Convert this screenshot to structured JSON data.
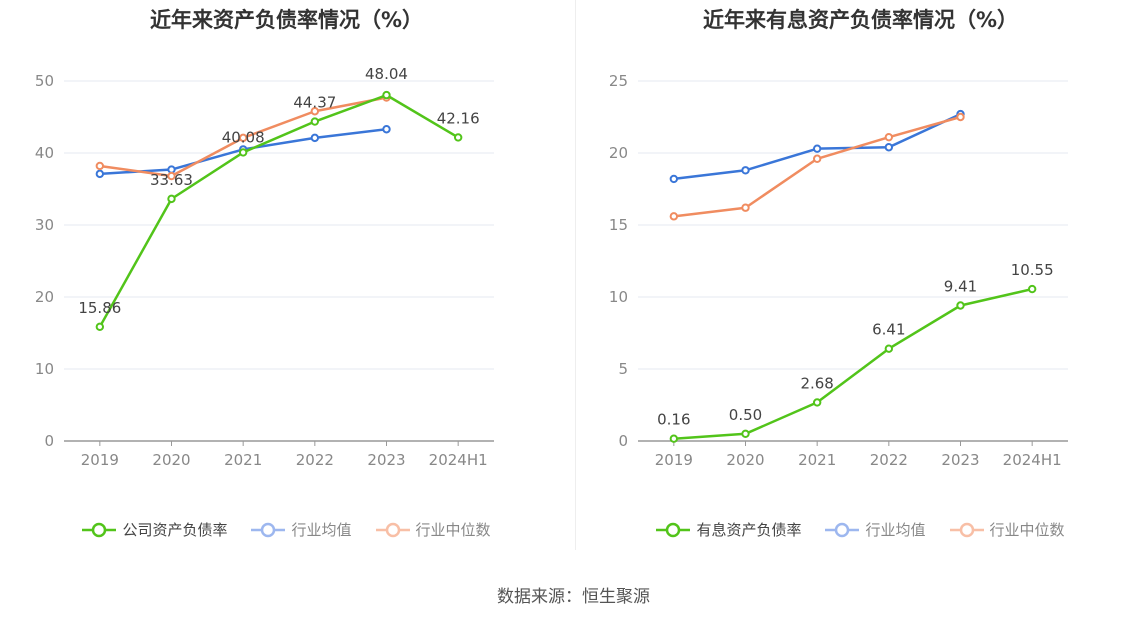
{
  "source_note": "数据来源：恒生聚源",
  "chart_data": [
    {
      "type": "line",
      "title": "近年来资产负债率情况（%）",
      "categories": [
        "2019",
        "2020",
        "2021",
        "2022",
        "2023",
        "2024H1"
      ],
      "ylim": [
        0,
        50
      ],
      "yticks": [
        0,
        10,
        20,
        30,
        40,
        50
      ],
      "grid": true,
      "legend_position": "bottom",
      "series": [
        {
          "name": "公司资产负债率",
          "color": "#52c41a",
          "values": [
            15.86,
            33.63,
            40.08,
            44.37,
            48.04,
            42.16
          ],
          "labels": [
            "15.86",
            "33.63",
            "40.08",
            "44.37",
            "48.04",
            "42.16"
          ]
        },
        {
          "name": "行业均值",
          "color": "#3a76d8",
          "values": [
            37.1,
            37.7,
            40.5,
            42.1,
            43.3,
            null
          ]
        },
        {
          "name": "行业中位数",
          "color": "#f08c60",
          "values": [
            38.2,
            36.8,
            42.1,
            45.8,
            47.7,
            null
          ]
        }
      ]
    },
    {
      "type": "line",
      "title": "近年来有息资产负债率情况（%）",
      "categories": [
        "2019",
        "2020",
        "2021",
        "2022",
        "2023",
        "2024H1"
      ],
      "ylim": [
        0,
        25
      ],
      "yticks": [
        0,
        5,
        10,
        15,
        20,
        25
      ],
      "grid": true,
      "legend_position": "bottom",
      "series": [
        {
          "name": "有息资产负债率",
          "color": "#52c41a",
          "values": [
            0.16,
            0.5,
            2.68,
            6.41,
            9.41,
            10.55
          ],
          "labels": [
            "0.16",
            "0.50",
            "2.68",
            "6.41",
            "9.41",
            "10.55"
          ]
        },
        {
          "name": "行业均值",
          "color": "#3a76d8",
          "values": [
            18.2,
            18.8,
            20.3,
            20.4,
            22.7,
            null
          ]
        },
        {
          "name": "行业中位数",
          "color": "#f08c60",
          "values": [
            15.6,
            16.2,
            19.6,
            21.1,
            22.5,
            null
          ]
        }
      ]
    }
  ]
}
